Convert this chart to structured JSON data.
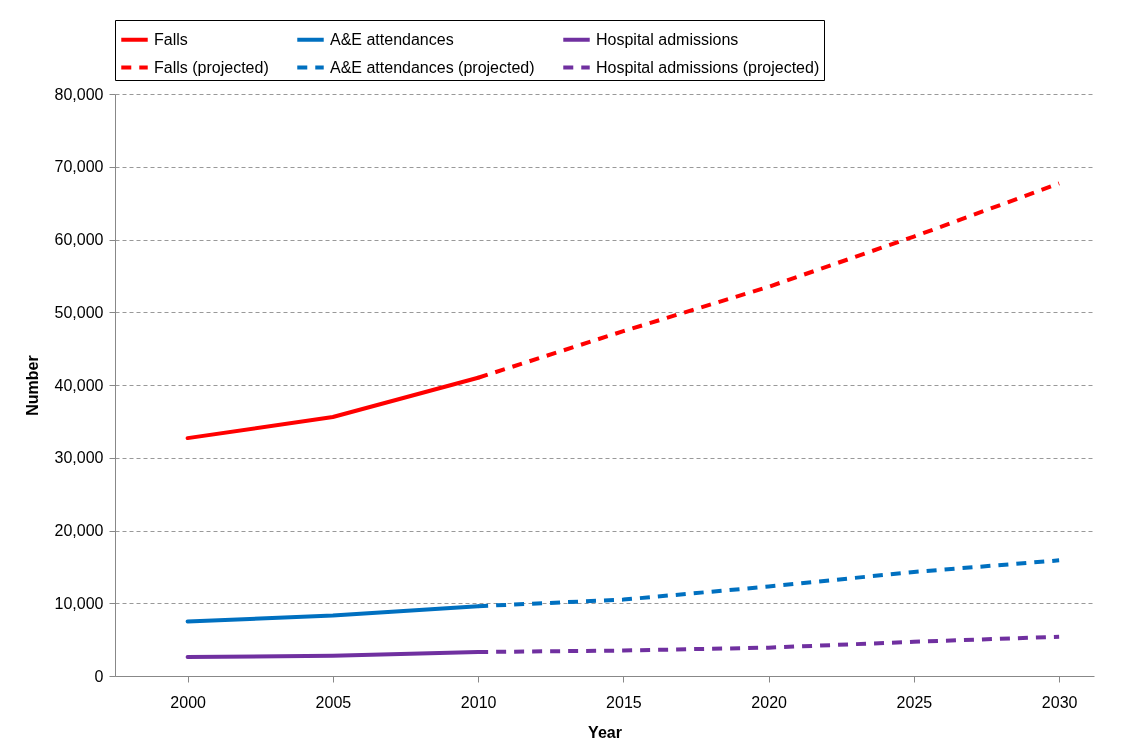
{
  "chart_data": {
    "type": "line",
    "xlabel": "Year",
    "ylabel": "Number",
    "xlim": [
      1997.5,
      2031.2
    ],
    "xticks": [
      2000,
      2005,
      2010,
      2015,
      2020,
      2025,
      2030
    ],
    "ylim": [
      0,
      80000
    ],
    "yticks": [
      0,
      {
        "value": 10000,
        "label": "10,000"
      },
      {
        "value": 20000,
        "label": "20,000"
      },
      {
        "value": 30000,
        "label": "30,000"
      },
      {
        "value": 40000,
        "label": "40,000"
      },
      {
        "value": 50000,
        "label": "50,000"
      },
      {
        "value": 60000,
        "label": "60,000"
      },
      {
        "value": 70000,
        "label": "70,000"
      },
      {
        "value": 80000,
        "label": "80,000"
      }
    ],
    "grid": "y",
    "legend": "top",
    "series": [
      {
        "name": "Falls",
        "color": "#ff0000",
        "line_style": "solid",
        "x": [
          2000,
          2005,
          2010
        ],
        "values": [
          32700,
          35600,
          41000
        ]
      },
      {
        "name": "A&E attendances",
        "color": "#0070c0",
        "line_style": "solid",
        "x": [
          2000,
          2005,
          2010
        ],
        "values": [
          7500,
          8300,
          9600
        ]
      },
      {
        "name": "Hospital admissions",
        "color": "#7030a0",
        "line_style": "solid",
        "x": [
          2000,
          2005,
          2010
        ],
        "values": [
          2600,
          2800,
          3300
        ]
      },
      {
        "name": "Falls (projected)",
        "color": "#ff0000",
        "line_style": "dashed",
        "x": [
          2010,
          2015,
          2020,
          2025,
          2030
        ],
        "values": [
          41000,
          47400,
          53500,
          60400,
          67700
        ]
      },
      {
        "name": "A&E attendances (projected)",
        "color": "#0070c0",
        "line_style": "dashed",
        "x": [
          2010,
          2015,
          2020,
          2025,
          2030
        ],
        "values": [
          9600,
          10500,
          12300,
          14300,
          15900
        ]
      },
      {
        "name": "Hospital admissions (projected)",
        "color": "#7030a0",
        "line_style": "dashed",
        "x": [
          2010,
          2015,
          2020,
          2025,
          2030
        ],
        "values": [
          3300,
          3500,
          3900,
          4700,
          5400
        ]
      }
    ]
  }
}
